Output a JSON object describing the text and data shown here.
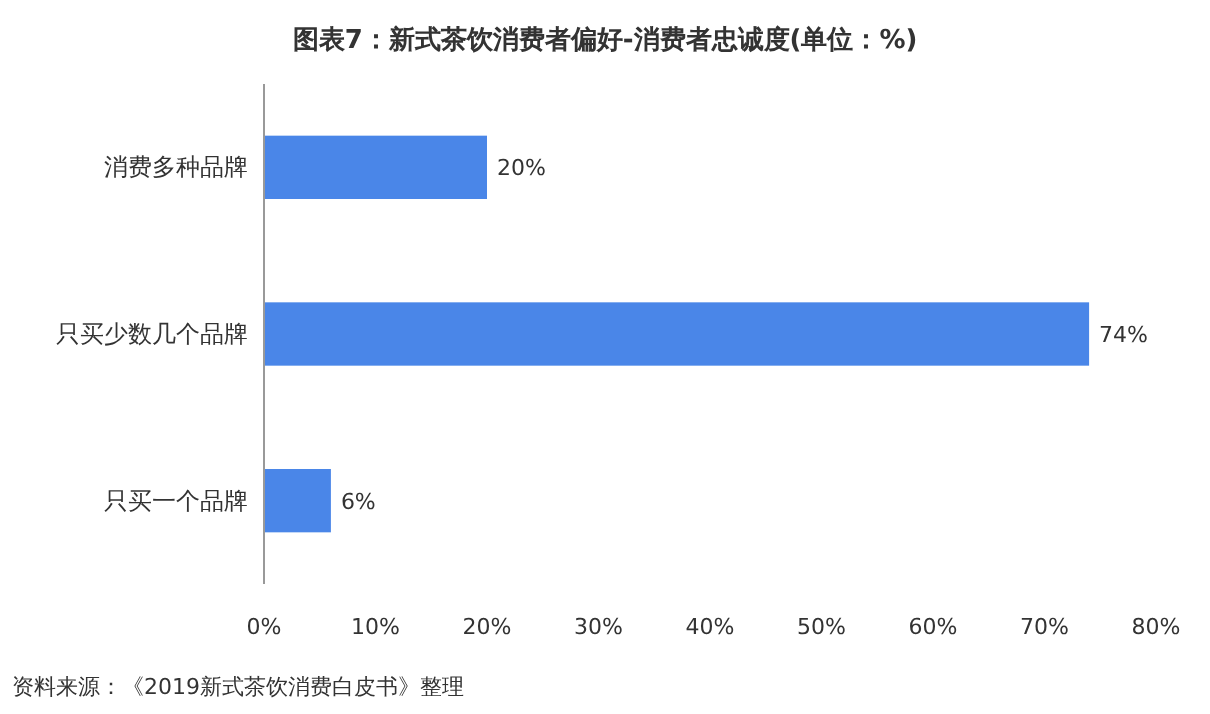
{
  "chart_data": {
    "type": "bar",
    "orientation": "horizontal",
    "title": "图表7：新式茶饮消费者偏好-消费者忠诚度(单位：%)",
    "categories": [
      "消费多种品牌",
      "只买少数几个品牌",
      "只买一个品牌"
    ],
    "values": [
      20,
      74,
      6
    ],
    "value_labels": [
      "20%",
      "74%",
      "6%"
    ],
    "color": "#4a86e8",
    "xlim": [
      0,
      80
    ],
    "xticks": [
      {
        "value": 0,
        "label": "0%"
      },
      {
        "value": 10,
        "label": "10%"
      },
      {
        "value": 20,
        "label": "20%"
      },
      {
        "value": 30,
        "label": "30%"
      },
      {
        "value": 40,
        "label": "40%"
      },
      {
        "value": 50,
        "label": "50%"
      },
      {
        "value": 60,
        "label": "60%"
      },
      {
        "value": 70,
        "label": "70%"
      },
      {
        "value": 80,
        "label": "80%"
      }
    ],
    "annotations": [
      "资料来源：《2019新式茶饮消费白皮书》整理"
    ]
  }
}
